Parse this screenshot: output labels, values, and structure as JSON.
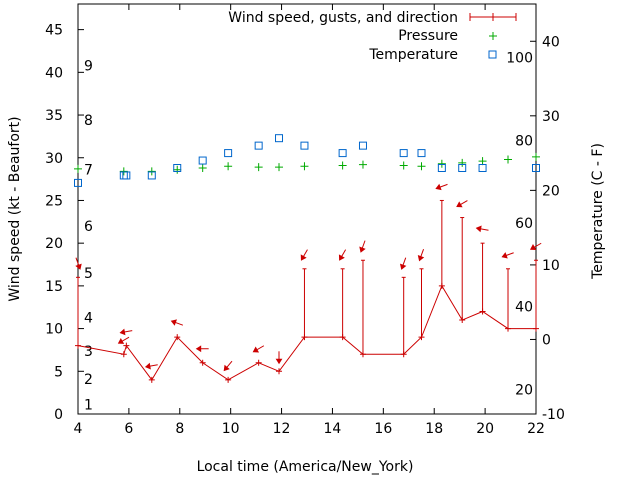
{
  "chart_data": {
    "type": "line",
    "xlabel": "Local time (America/New_York)",
    "ylabel": "Wind speed (kt - Beaufort)",
    "y2label": "Temperature (C - F)",
    "xlim": [
      4,
      22
    ],
    "ylim": [
      0,
      48
    ],
    "y2lim": [
      -10,
      45
    ],
    "x_ticks": [
      4,
      6,
      8,
      10,
      12,
      14,
      16,
      18,
      20,
      22
    ],
    "y_ticks": [
      0,
      5,
      10,
      15,
      20,
      25,
      30,
      35,
      40,
      45
    ],
    "y2_ticks": [
      -10,
      0,
      10,
      20,
      30,
      40
    ],
    "beaufort_labels": [
      {
        "label": "1",
        "y": 1.1
      },
      {
        "label": "2",
        "y": 4.1
      },
      {
        "label": "3",
        "y": 7.4
      },
      {
        "label": "4",
        "y": 11.3
      },
      {
        "label": "5",
        "y": 16.5
      },
      {
        "label": "6",
        "y": 22.0
      },
      {
        "label": "7",
        "y": 28.6
      },
      {
        "label": "8",
        "y": 34.4
      },
      {
        "label": "9",
        "y": 40.8
      }
    ],
    "fahrenheit_labels": [
      {
        "label": "20",
        "c": -6.7
      },
      {
        "label": "40",
        "c": 4.4
      },
      {
        "label": "60",
        "c": 15.6
      },
      {
        "label": "80",
        "c": 26.7
      },
      {
        "label": "100",
        "c": 37.8
      }
    ],
    "legend": {
      "position": "top-right",
      "wind": "Wind speed, gusts, and direction",
      "pressure": "Pressure",
      "temperature": "Temperature"
    },
    "colors": {
      "wind": "#cc0000",
      "pressure": "#00aa00",
      "temperature": "#0066cc"
    },
    "wind": [
      {
        "x": 4.0,
        "speed": 8,
        "gust": 16,
        "dir_deg": 340
      },
      {
        "x": 5.8,
        "speed": 7,
        "gust": 7,
        "dir_deg": 60
      },
      {
        "x": 5.9,
        "speed": 8,
        "gust": 8,
        "dir_deg": 80
      },
      {
        "x": 6.9,
        "speed": 4,
        "gust": 4,
        "dir_deg": 80
      },
      {
        "x": 7.9,
        "speed": 9,
        "gust": 9,
        "dir_deg": 110
      },
      {
        "x": 8.9,
        "speed": 6,
        "gust": 6,
        "dir_deg": 90
      },
      {
        "x": 9.9,
        "speed": 4,
        "gust": 4,
        "dir_deg": 40
      },
      {
        "x": 11.1,
        "speed": 6,
        "gust": 6,
        "dir_deg": 60
      },
      {
        "x": 11.9,
        "speed": 5,
        "gust": 5,
        "dir_deg": 0
      },
      {
        "x": 12.9,
        "speed": 9,
        "gust": 17,
        "dir_deg": 30
      },
      {
        "x": 14.4,
        "speed": 9,
        "gust": 17,
        "dir_deg": 30
      },
      {
        "x": 15.2,
        "speed": 7,
        "gust": 18,
        "dir_deg": 20
      },
      {
        "x": 16.8,
        "speed": 7,
        "gust": 16,
        "dir_deg": 20
      },
      {
        "x": 17.5,
        "speed": 9,
        "gust": 17,
        "dir_deg": 20
      },
      {
        "x": 18.3,
        "speed": 15,
        "gust": 25,
        "dir_deg": 70
      },
      {
        "x": 19.1,
        "speed": 11,
        "gust": 23,
        "dir_deg": 60
      },
      {
        "x": 19.9,
        "speed": 12,
        "gust": 20,
        "dir_deg": 100
      },
      {
        "x": 20.9,
        "speed": 10,
        "gust": 17,
        "dir_deg": 70
      },
      {
        "x": 22.0,
        "speed": 10,
        "gust": 18,
        "dir_deg": 60
      }
    ],
    "pressure": [
      {
        "x": 4.0,
        "y": 28.7
      },
      {
        "x": 5.8,
        "y": 28.4
      },
      {
        "x": 6.9,
        "y": 28.4
      },
      {
        "x": 7.9,
        "y": 28.6
      },
      {
        "x": 8.9,
        "y": 28.8
      },
      {
        "x": 9.9,
        "y": 29.0
      },
      {
        "x": 11.1,
        "y": 28.9
      },
      {
        "x": 11.9,
        "y": 28.9
      },
      {
        "x": 12.9,
        "y": 29.0
      },
      {
        "x": 14.4,
        "y": 29.1
      },
      {
        "x": 15.2,
        "y": 29.2
      },
      {
        "x": 16.8,
        "y": 29.1
      },
      {
        "x": 17.5,
        "y": 29.0
      },
      {
        "x": 18.3,
        "y": 29.3
      },
      {
        "x": 19.1,
        "y": 29.4
      },
      {
        "x": 19.9,
        "y": 29.6
      },
      {
        "x": 20.9,
        "y": 29.8
      },
      {
        "x": 22.0,
        "y": 30.1
      }
    ],
    "temperature": [
      {
        "x": 4.0,
        "c": 21.0
      },
      {
        "x": 5.8,
        "c": 22.0
      },
      {
        "x": 5.9,
        "c": 22.0
      },
      {
        "x": 6.9,
        "c": 22.0
      },
      {
        "x": 7.9,
        "c": 23.0
      },
      {
        "x": 8.9,
        "c": 24.0
      },
      {
        "x": 9.9,
        "c": 25.0
      },
      {
        "x": 11.1,
        "c": 26.0
      },
      {
        "x": 11.9,
        "c": 27.0
      },
      {
        "x": 12.9,
        "c": 26.0
      },
      {
        "x": 14.4,
        "c": 25.0
      },
      {
        "x": 15.2,
        "c": 26.0
      },
      {
        "x": 16.8,
        "c": 25.0
      },
      {
        "x": 17.5,
        "c": 25.0
      },
      {
        "x": 18.3,
        "c": 23.0
      },
      {
        "x": 19.1,
        "c": 23.0
      },
      {
        "x": 19.9,
        "c": 23.0
      },
      {
        "x": 22.0,
        "c": 23.0
      }
    ]
  }
}
